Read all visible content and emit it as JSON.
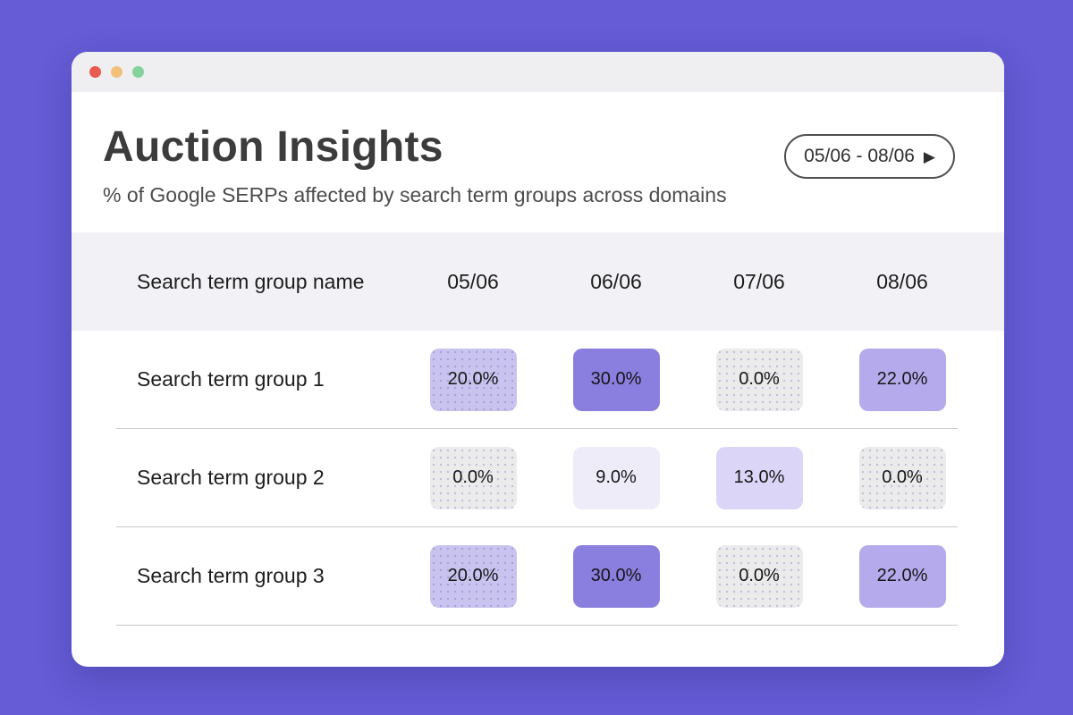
{
  "window": {
    "traffic_lights": [
      {
        "name": "close",
        "color": "#E85B4E"
      },
      {
        "name": "minimize",
        "color": "#F2C178"
      },
      {
        "name": "maximize",
        "color": "#85D29F"
      }
    ]
  },
  "header": {
    "title": "Auction Insights",
    "subtitle": "% of Google SERPs affected by search term groups across domains",
    "date_range": {
      "label": "05/06 - 08/06",
      "next_icon": "▶"
    }
  },
  "table": {
    "columns": [
      "Search term group name",
      "05/06",
      "06/06",
      "07/06",
      "08/06"
    ],
    "rows": [
      {
        "name": "Search term group 1",
        "cells": [
          {
            "value": "20.0%",
            "bg": "#C8C3EF",
            "dotted": true
          },
          {
            "value": "30.0%",
            "bg": "#8A7EDE",
            "dotted": false
          },
          {
            "value": "0.0%",
            "bg": "#EBEBEB",
            "dotted": true
          },
          {
            "value": "22.0%",
            "bg": "#B5ABEC",
            "dotted": false
          }
        ]
      },
      {
        "name": "Search term group 2",
        "cells": [
          {
            "value": "0.0%",
            "bg": "#EBEBEB",
            "dotted": true
          },
          {
            "value": "9.0%",
            "bg": "#EFECFA",
            "dotted": false
          },
          {
            "value": "13.0%",
            "bg": "#DBD6F7",
            "dotted": false
          },
          {
            "value": "0.0%",
            "bg": "#EBEBEB",
            "dotted": true
          }
        ]
      },
      {
        "name": "Search term group 3",
        "cells": [
          {
            "value": "20.0%",
            "bg": "#C8C3EF",
            "dotted": true
          },
          {
            "value": "30.0%",
            "bg": "#8A7EDE",
            "dotted": false
          },
          {
            "value": "0.0%",
            "bg": "#EBEBEB",
            "dotted": true
          },
          {
            "value": "22.0%",
            "bg": "#B5ABEC",
            "dotted": false
          }
        ]
      }
    ]
  },
  "colors": {
    "page_background": "#655CD6",
    "titlebar": "#EFEFF2",
    "table_header_band": "#F1F1F6",
    "accent": "#8A7EDE"
  }
}
